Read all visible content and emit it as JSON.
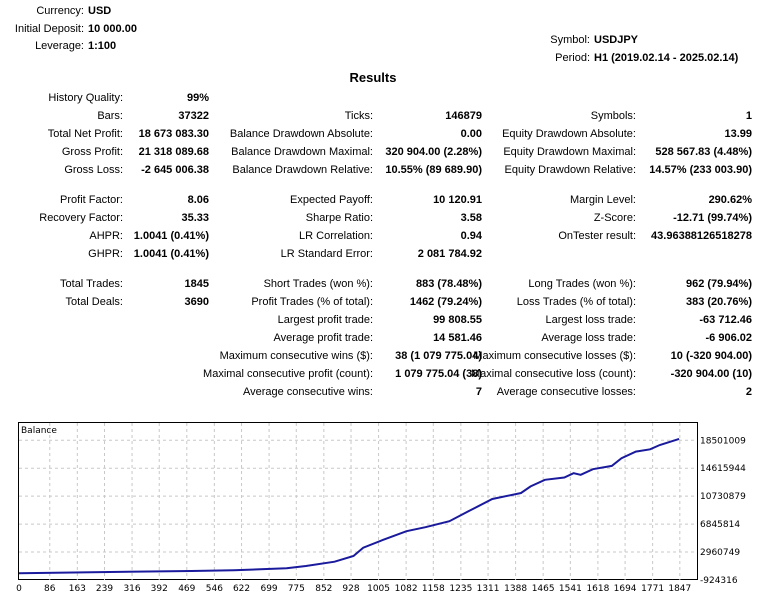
{
  "header": {
    "left": [
      {
        "label": "Currency:",
        "value": "USD"
      },
      {
        "label": "Initial Deposit:",
        "value": "10 000.00"
      },
      {
        "label": "Leverage:",
        "value": "1:100"
      }
    ],
    "right": [
      {
        "label": "Symbol:",
        "value": "USDJPY"
      },
      {
        "label": "Period:",
        "value": "H1 (2019.02.14 - 2025.02.14)"
      }
    ]
  },
  "results": {
    "title": "Results",
    "rows": [
      [
        {
          "label": "History Quality:",
          "value": "99%"
        },
        null,
        null
      ],
      [
        {
          "label": "Bars:",
          "value": "37322"
        },
        {
          "label": "Ticks:",
          "value": "146879"
        },
        {
          "label": "Symbols:",
          "value": "1"
        }
      ],
      [
        {
          "label": "Total Net Profit:",
          "value": "18 673 083.30"
        },
        {
          "label": "Balance Drawdown Absolute:",
          "value": "0.00"
        },
        {
          "label": "Equity Drawdown Absolute:",
          "value": "13.99"
        }
      ],
      [
        {
          "label": "Gross Profit:",
          "value": "21 318 089.68"
        },
        {
          "label": "Balance Drawdown Maximal:",
          "value": "320 904.00 (2.28%)"
        },
        {
          "label": "Equity Drawdown Maximal:",
          "value": "528 567.83 (4.48%)"
        }
      ],
      [
        {
          "label": "Gross Loss:",
          "value": "-2 645 006.38"
        },
        {
          "label": "Balance Drawdown Relative:",
          "value": "10.55% (89 689.90)"
        },
        {
          "label": "Equity Drawdown Relative:",
          "value": "14.57% (233 003.90)"
        }
      ],
      "gap",
      [
        {
          "label": "Profit Factor:",
          "value": "8.06"
        },
        {
          "label": "Expected Payoff:",
          "value": "10 120.91"
        },
        {
          "label": "Margin Level:",
          "value": "290.62%"
        }
      ],
      [
        {
          "label": "Recovery Factor:",
          "value": "35.33"
        },
        {
          "label": "Sharpe Ratio:",
          "value": "3.58"
        },
        {
          "label": "Z-Score:",
          "value": "-12.71 (99.74%)"
        }
      ],
      [
        {
          "label": "AHPR:",
          "value": "1.0041 (0.41%)"
        },
        {
          "label": "LR Correlation:",
          "value": "0.94"
        },
        {
          "label": "OnTester result:",
          "value": "43.96388126518278"
        }
      ],
      [
        {
          "label": "GHPR:",
          "value": "1.0041 (0.41%)"
        },
        {
          "label": "LR Standard Error:",
          "value": "2 081 784.92"
        },
        null
      ],
      "gap",
      [
        {
          "label": "Total Trades:",
          "value": "1845"
        },
        {
          "label": "Short Trades (won %):",
          "value": "883 (78.48%)"
        },
        {
          "label": "Long Trades (won %):",
          "value": "962 (79.94%)"
        }
      ],
      [
        {
          "label": "Total Deals:",
          "value": "3690"
        },
        {
          "label": "Profit Trades (% of total):",
          "value": "1462 (79.24%)"
        },
        {
          "label": "Loss Trades (% of total):",
          "value": "383 (20.76%)"
        }
      ],
      [
        null,
        {
          "label": "Largest profit trade:",
          "value": "99 808.55"
        },
        {
          "label": "Largest loss trade:",
          "value": "-63 712.46"
        }
      ],
      [
        null,
        {
          "label": "Average profit trade:",
          "value": "14 581.46"
        },
        {
          "label": "Average loss trade:",
          "value": "-6 906.02"
        }
      ],
      [
        null,
        {
          "label": "Maximum consecutive wins ($):",
          "value": "38 (1 079 775.04)"
        },
        {
          "label": "Maximum consecutive losses ($):",
          "value": "10 (-320 904.00)"
        }
      ],
      [
        null,
        {
          "label": "Maximal consecutive profit (count):",
          "value": "1 079 775.04 (38)"
        },
        {
          "label": "Maximal consecutive loss (count):",
          "value": "-320 904.00 (10)"
        }
      ],
      [
        null,
        {
          "label": "Average consecutive wins:",
          "value": "7"
        },
        {
          "label": "Average consecutive losses:",
          "value": "2"
        }
      ]
    ]
  },
  "chart_data": {
    "type": "line",
    "title": "Balance",
    "line_color": "#1a1a9c",
    "grid": true,
    "x_ticks": [
      0,
      86,
      163,
      239,
      316,
      392,
      469,
      546,
      622,
      699,
      775,
      852,
      928,
      1005,
      1082,
      1158,
      1235,
      1311,
      1388,
      1465,
      1541,
      1618,
      1694,
      1771,
      1847
    ],
    "y_ticks": [
      -924316,
      2960749,
      6845814,
      10730879,
      14615944,
      18501009
    ],
    "xlim": [
      0,
      1895
    ],
    "ylim": [
      -924316,
      20900000
    ],
    "series": [
      {
        "x": [
          0,
          254,
          481,
          601,
          748,
          802,
          882,
          935,
          962,
          1016,
          1083,
          1136,
          1203,
          1256,
          1323,
          1403,
          1430,
          1470,
          1524,
          1550,
          1570,
          1604,
          1657,
          1684,
          1724,
          1764,
          1791,
          1845
        ],
        "y": [
          10000,
          194000,
          333000,
          425000,
          701000,
          1024000,
          1623000,
          2406000,
          3559000,
          4619000,
          5863000,
          6416000,
          7245000,
          8628000,
          10333000,
          11163000,
          12085000,
          13006000,
          13329000,
          13928000,
          13698000,
          14481000,
          14942000,
          16002000,
          16924000,
          17246000,
          17845000,
          18683083
        ]
      }
    ]
  }
}
